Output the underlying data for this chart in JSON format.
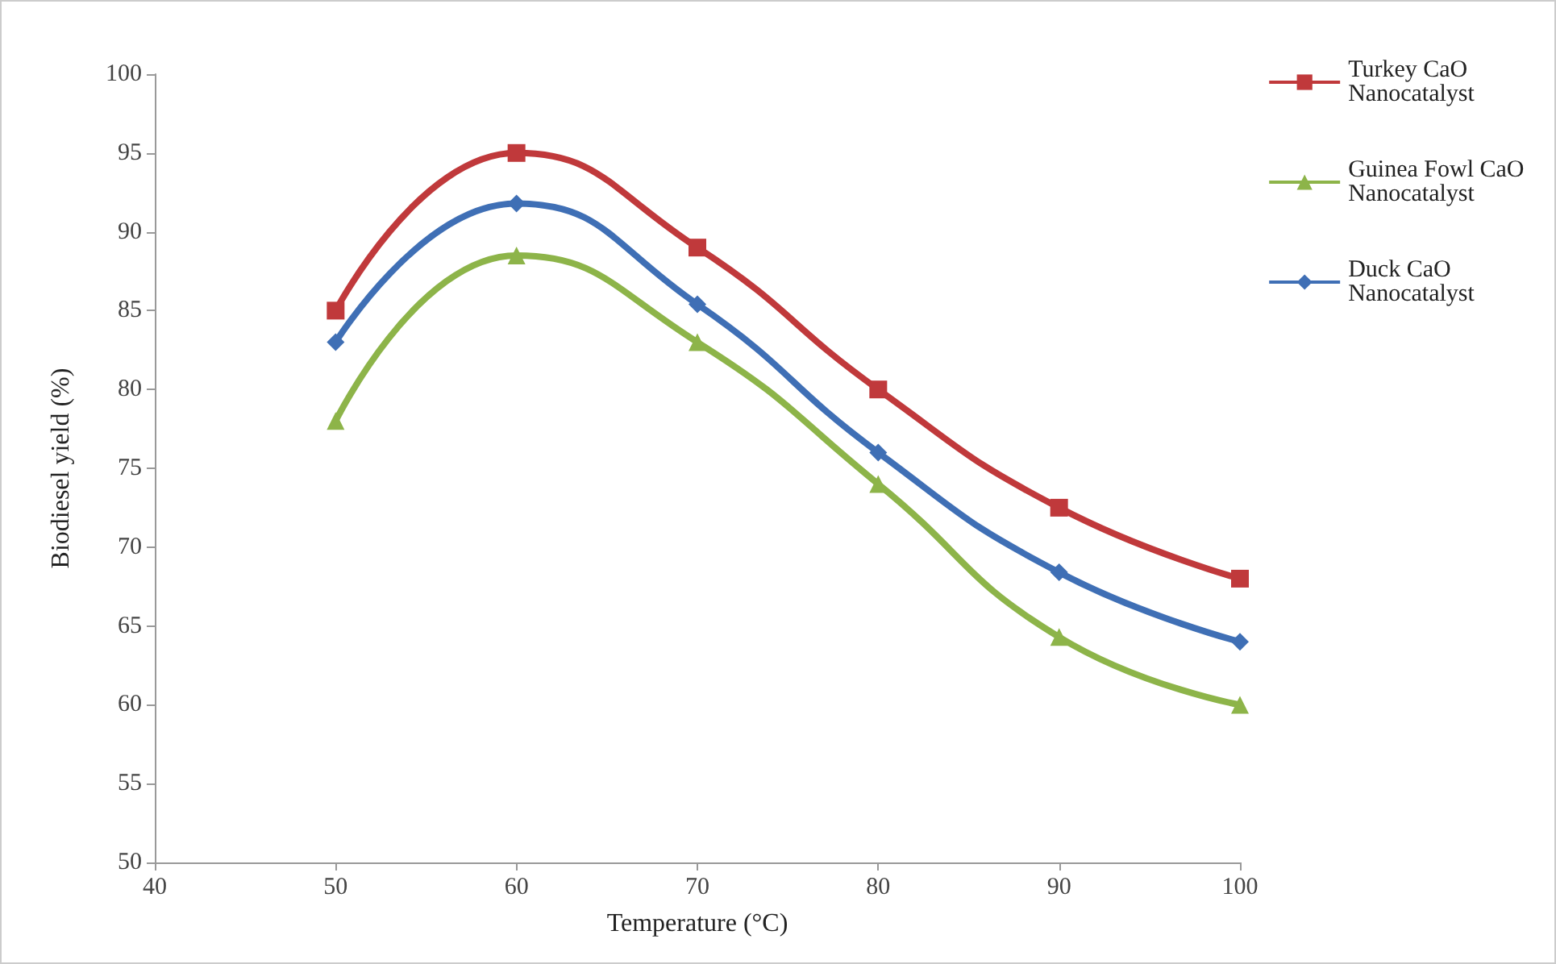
{
  "chart_data": {
    "type": "line",
    "xlabel": "Temperature (°C)",
    "ylabel": "Biodiesel yield (%)",
    "x": [
      50,
      60,
      70,
      80,
      90,
      100
    ],
    "series": [
      {
        "name": "Turkey CaO Nanocatalyst",
        "color": "#c0393b",
        "marker": "square",
        "values": [
          85,
          95,
          89,
          80,
          72.5,
          68
        ]
      },
      {
        "name": "Guinea Fowl CaO Nanocatalyst",
        "color": "#8db449",
        "marker": "triangle",
        "values": [
          78,
          88.5,
          83,
          74,
          64.3,
          60
        ]
      },
      {
        "name": "Duck CaO Nanocatalyst",
        "color": "#3f6fb5",
        "marker": "diamond",
        "values": [
          83,
          91.8,
          85.4,
          76,
          68.4,
          64
        ]
      }
    ],
    "xlim": [
      40,
      100
    ],
    "xticks": [
      40,
      50,
      60,
      70,
      80,
      90,
      100
    ],
    "ylim": [
      50,
      100
    ],
    "yticks": [
      50,
      55,
      60,
      65,
      70,
      75,
      80,
      85,
      90,
      95,
      100
    ],
    "grid": false,
    "legend": "right"
  }
}
